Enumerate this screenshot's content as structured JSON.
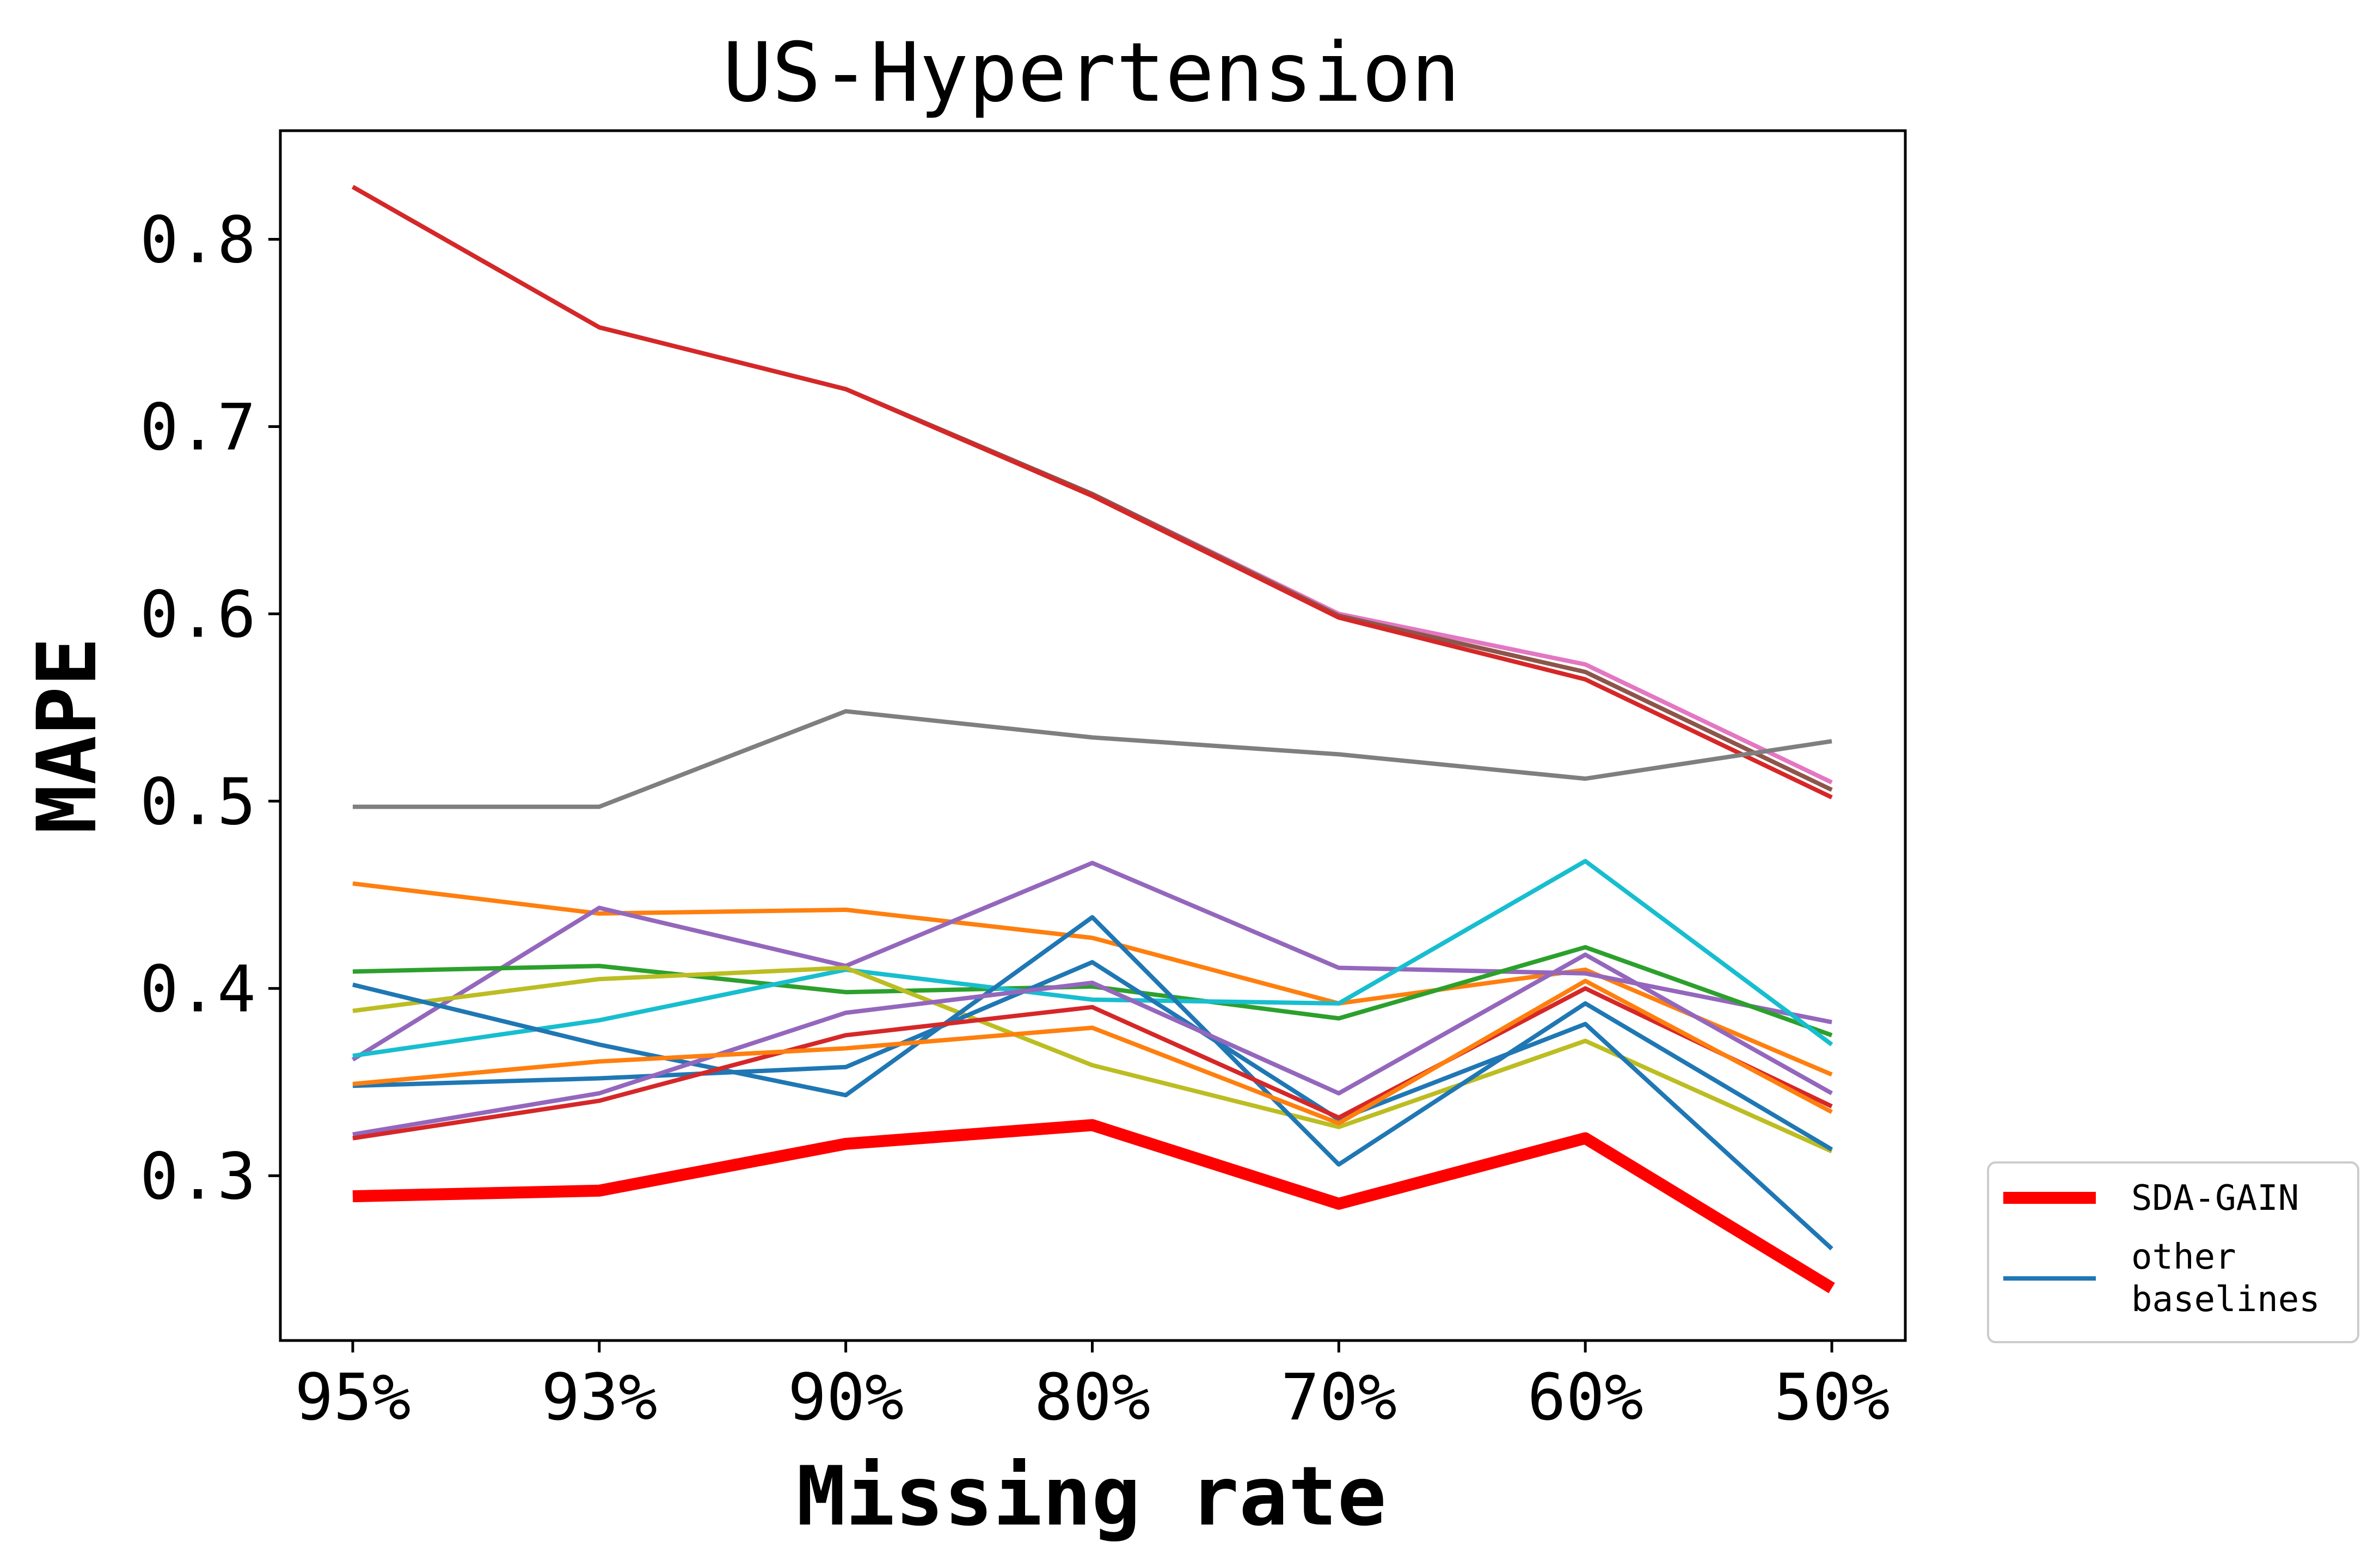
{
  "chart_data": {
    "type": "line",
    "title": "US-Hypertension",
    "xlabel": "Missing rate",
    "ylabel": "MAPE",
    "categories": [
      "95%",
      "93%",
      "90%",
      "80%",
      "70%",
      "60%",
      "50%"
    ],
    "ylim": [
      0.212,
      0.858
    ],
    "yticks": [
      0.3,
      0.4,
      0.5,
      0.6,
      0.7,
      0.8
    ],
    "ytick_labels": [
      "0.3",
      "0.4",
      "0.5",
      "0.6",
      "0.7",
      "0.8"
    ],
    "grid": false,
    "legend": {
      "placement": "outside-lower-right",
      "entries": [
        {
          "label": "SDA-GAIN",
          "color": "#ff0000"
        },
        {
          "label_lines": [
            "other",
            "baselines"
          ],
          "color": "#1f77b4"
        }
      ]
    },
    "highlight_series": {
      "name": "SDA-GAIN",
      "color": "#ff0000",
      "values": [
        0.289,
        0.292,
        0.317,
        0.327,
        0.285,
        0.32,
        0.24
      ]
    },
    "series": [
      {
        "color": "#e377c2",
        "values": [
          0.828,
          0.753,
          0.72,
          0.664,
          0.6,
          0.573,
          0.51
        ]
      },
      {
        "color": "#8c564b",
        "values": [
          0.828,
          0.753,
          0.72,
          0.664,
          0.599,
          0.569,
          0.506
        ]
      },
      {
        "color": "#d62728",
        "values": [
          0.828,
          0.753,
          0.72,
          0.663,
          0.598,
          0.565,
          0.502
        ]
      },
      {
        "color": "#7f7f7f",
        "values": [
          0.497,
          0.497,
          0.548,
          0.534,
          0.525,
          0.512,
          0.532
        ]
      },
      {
        "color": "#ff7f0e",
        "values": [
          0.456,
          0.44,
          0.442,
          0.427,
          0.392,
          0.41,
          0.354
        ]
      },
      {
        "color": "#9467bd",
        "values": [
          0.362,
          0.443,
          0.412,
          0.467,
          0.411,
          0.408,
          0.382
        ]
      },
      {
        "color": "#2ca02c",
        "values": [
          0.409,
          0.412,
          0.398,
          0.401,
          0.384,
          0.422,
          0.375
        ]
      },
      {
        "color": "#17becf",
        "values": [
          0.364,
          0.383,
          0.41,
          0.394,
          0.392,
          0.468,
          0.37
        ]
      },
      {
        "color": "#bcbd22",
        "values": [
          0.388,
          0.405,
          0.411,
          0.359,
          0.326,
          0.372,
          0.313
        ]
      },
      {
        "color": "#1f77b4",
        "values": [
          0.402,
          0.37,
          0.343,
          0.438,
          0.306,
          0.392,
          0.314
        ]
      },
      {
        "color": "#1f77b4",
        "values": [
          0.348,
          0.352,
          0.358,
          0.414,
          0.33,
          0.381,
          0.261
        ]
      },
      {
        "color": "#9467bd",
        "values": [
          0.322,
          0.344,
          0.387,
          0.403,
          0.344,
          0.418,
          0.344
        ]
      },
      {
        "color": "#d62728",
        "values": [
          0.32,
          0.34,
          0.375,
          0.39,
          0.331,
          0.4,
          0.337
        ]
      },
      {
        "color": "#ff7f0e",
        "values": [
          0.349,
          0.361,
          0.368,
          0.379,
          0.328,
          0.404,
          0.334
        ]
      }
    ]
  }
}
